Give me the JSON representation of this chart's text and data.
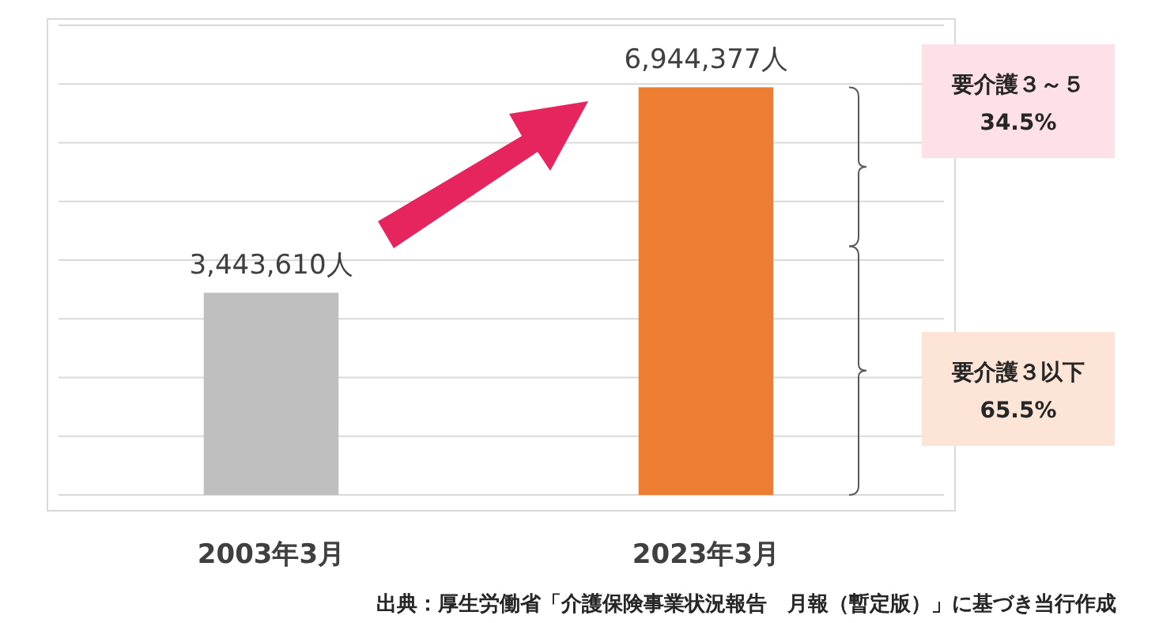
{
  "chart_data": {
    "type": "bar",
    "categories": [
      "2003年3月",
      "2023年3月"
    ],
    "values": [
      3443610,
      6944377
    ],
    "colors": [
      "#bfbfbf",
      "#ed7d31"
    ],
    "value_labels": [
      "3,443,610人",
      "6,944,377人"
    ],
    "ylim": [
      0,
      8000000
    ],
    "yticks": [
      {
        "value": 0,
        "label": null
      },
      {
        "value": 1000000,
        "label": null
      },
      {
        "value": 2000000,
        "label": null
      },
      {
        "value": 3000000,
        "label": null
      },
      {
        "value": 4000000,
        "label": null
      },
      {
        "value": 5000000,
        "label": null
      },
      {
        "value": 6000000,
        "label": null
      },
      {
        "value": 7000000,
        "label": null
      },
      {
        "value": 8000000,
        "label": null
      }
    ],
    "grid": "y",
    "tick_labels": "x",
    "annotations": [
      "要介護３～５\n34.5%",
      "要介護３以下\n65.5%",
      "出典：厚生労働省「介護保険事業状況報告　月報（暫定版）」に基づき当行作成"
    ]
  }
}
